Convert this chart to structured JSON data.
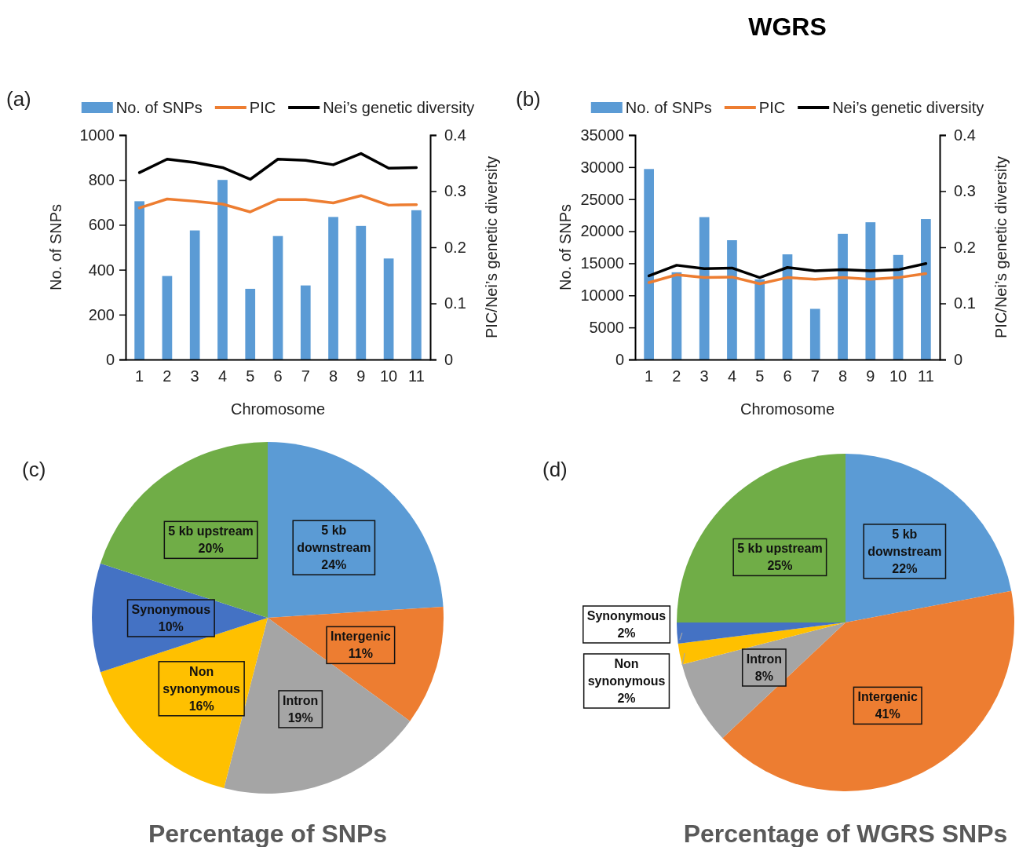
{
  "chart_data": [
    {
      "type": "bar",
      "annotations": [
        "(a)"
      ],
      "xlabel": "Chromosome",
      "ylabel": "No. of SNPs",
      "y2label": "PIC/Nei’s genetic diversity",
      "categories": [
        "1",
        "2",
        "3",
        "4",
        "5",
        "6",
        "7",
        "8",
        "9",
        "10",
        "11"
      ],
      "series": [
        {
          "name": "No. of SNPs",
          "type": "bar",
          "color": "#5b9bd5",
          "values": [
            705,
            372,
            575,
            800,
            315,
            550,
            330,
            635,
            595,
            450,
            665
          ]
        },
        {
          "name": "PIC",
          "type": "line",
          "axis": "y2",
          "color": "#ed7d31",
          "values": [
            0.27,
            0.286,
            0.282,
            0.277,
            0.263,
            0.285,
            0.285,
            0.279,
            0.292,
            0.275,
            0.276
          ]
        },
        {
          "name": "Nei’s genetic diversity",
          "type": "line",
          "axis": "y2",
          "color": "#000000",
          "values": [
            0.333,
            0.357,
            0.351,
            0.342,
            0.321,
            0.357,
            0.355,
            0.347,
            0.367,
            0.341,
            0.342
          ]
        }
      ],
      "ylim": [
        0,
        1000
      ],
      "yticks": [
        0,
        200,
        400,
        600,
        800,
        1000
      ],
      "y2lim": [
        0,
        0.4
      ],
      "y2ticks": [
        0,
        0.1,
        0.2,
        0.3,
        0.4
      ],
      "legend": "top",
      "grid": false
    },
    {
      "type": "bar",
      "title": "WGRS",
      "annotations": [
        "(b)"
      ],
      "xlabel": "Chromosome",
      "ylabel": "No. of SNPs",
      "y2label": "PIC/Nei’s genetic diversity",
      "categories": [
        "1",
        "2",
        "3",
        "4",
        "5",
        "6",
        "7",
        "8",
        "9",
        "10",
        "11"
      ],
      "series": [
        {
          "name": "No. of SNPs",
          "type": "bar",
          "color": "#5b9bd5",
          "values": [
            29700,
            13600,
            22200,
            18600,
            12500,
            16400,
            7900,
            19600,
            21400,
            16300,
            21900
          ]
        },
        {
          "name": "PIC",
          "type": "line",
          "axis": "y2",
          "color": "#ed7d31",
          "values": [
            0.137,
            0.151,
            0.146,
            0.147,
            0.135,
            0.146,
            0.143,
            0.146,
            0.143,
            0.146,
            0.153
          ]
        },
        {
          "name": "Nei’s genetic diversity",
          "type": "line",
          "axis": "y2",
          "color": "#000000",
          "values": [
            0.149,
            0.168,
            0.162,
            0.163,
            0.146,
            0.164,
            0.158,
            0.16,
            0.158,
            0.16,
            0.171
          ]
        }
      ],
      "ylim": [
        0,
        35000
      ],
      "yticks": [
        0,
        5000,
        10000,
        15000,
        20000,
        25000,
        30000,
        35000
      ],
      "y2lim": [
        0,
        0.4
      ],
      "y2ticks": [
        0,
        0.1,
        0.2,
        0.3,
        0.4
      ],
      "legend": "top",
      "grid": false
    },
    {
      "type": "pie",
      "title": "Percentage of SNPs",
      "annotations": [
        "(c)"
      ],
      "categories": [
        "5 kb downstream",
        "Intergenic",
        "Intron",
        "Non synonymous",
        "Synonymous",
        "5 kb upstream"
      ],
      "values": [
        24,
        11,
        19,
        16,
        10,
        20
      ],
      "colors": [
        "#5b9bd5",
        "#ed7d31",
        "#a5a5a5",
        "#ffc000",
        "#4472c4",
        "#70ad47"
      ],
      "value_labels": [
        "24%",
        "11%",
        "19%",
        "16%",
        "10%",
        "20%"
      ]
    },
    {
      "type": "pie",
      "title": "Percentage of WGRS SNPs",
      "annotations": [
        "(d)"
      ],
      "categories": [
        "5 kb downstream",
        "Intergenic",
        "Intron",
        "Non synonymous",
        "Synonymous",
        "5 kb upstream"
      ],
      "values": [
        22,
        41,
        8,
        2,
        2,
        25
      ],
      "colors": [
        "#5b9bd5",
        "#ed7d31",
        "#a5a5a5",
        "#ffc000",
        "#4472c4",
        "#70ad47"
      ],
      "value_labels": [
        "22%",
        "41%",
        "8%",
        "2%",
        "2%",
        "25%"
      ]
    }
  ]
}
